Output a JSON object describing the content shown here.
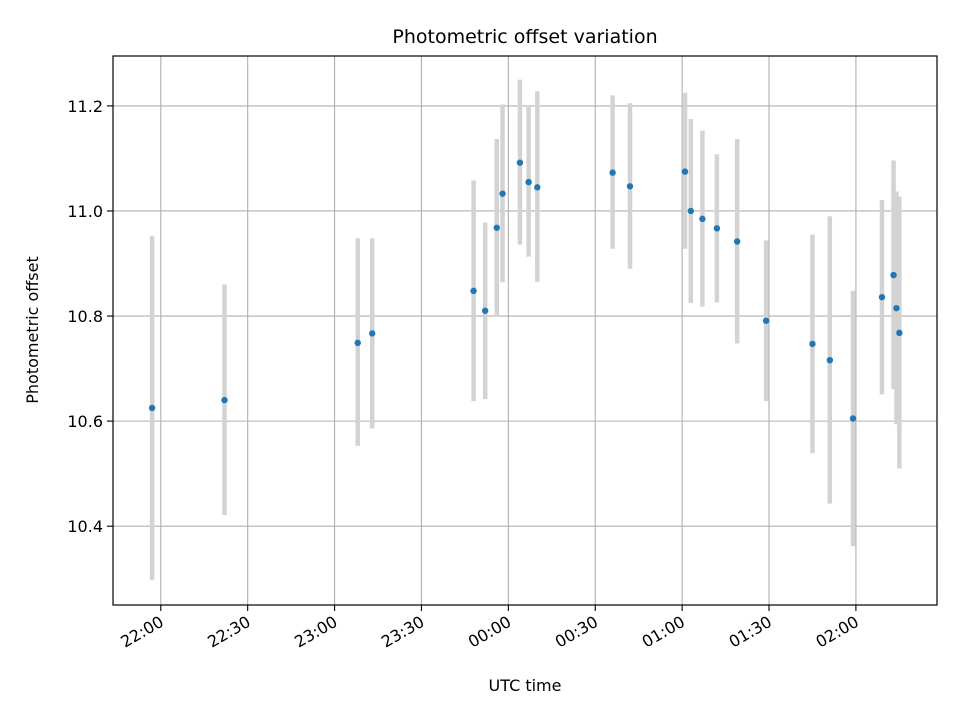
{
  "chart_data": {
    "type": "scatter",
    "title": "Photometric offset variation",
    "xlabel": "UTC time",
    "ylabel": "Photometric offset",
    "x_ticks": [
      "22:00",
      "22:30",
      "23:00",
      "23:30",
      "00:00",
      "00:30",
      "01:00",
      "01:30",
      "02:00"
    ],
    "x_tick_minutes": [
      0,
      30,
      60,
      90,
      120,
      150,
      180,
      210,
      240
    ],
    "xlim_minutes": [
      -16.5,
      268
    ],
    "ylim": [
      10.25,
      11.295
    ],
    "y_ticks": [
      10.4,
      10.6,
      10.8,
      11.0,
      11.2
    ],
    "grid": true,
    "marker_color": "#1f77b4",
    "errorbar_color": "#d3d3d3",
    "points": [
      {
        "time": "21:57",
        "y": 10.625,
        "lo": 10.298,
        "hi": 10.952
      },
      {
        "time": "22:22",
        "y": 10.64,
        "lo": 10.421,
        "hi": 10.86
      },
      {
        "time": "23:08",
        "y": 10.749,
        "lo": 10.553,
        "hi": 10.948
      },
      {
        "time": "23:13",
        "y": 10.767,
        "lo": 10.586,
        "hi": 10.948
      },
      {
        "time": "23:48",
        "y": 10.848,
        "lo": 10.638,
        "hi": 11.058
      },
      {
        "time": "23:52",
        "y": 10.81,
        "lo": 10.642,
        "hi": 10.978
      },
      {
        "time": "23:56",
        "y": 10.968,
        "lo": 10.799,
        "hi": 11.137
      },
      {
        "time": "23:58",
        "y": 11.033,
        "lo": 10.864,
        "hi": 11.203
      },
      {
        "time": "00:04",
        "y": 11.092,
        "lo": 10.936,
        "hi": 11.25
      },
      {
        "time": "00:07",
        "y": 11.055,
        "lo": 10.913,
        "hi": 11.198
      },
      {
        "time": "00:10",
        "y": 11.045,
        "lo": 10.865,
        "hi": 11.228
      },
      {
        "time": "00:36",
        "y": 11.073,
        "lo": 10.928,
        "hi": 11.22
      },
      {
        "time": "00:42",
        "y": 11.047,
        "lo": 10.89,
        "hi": 11.205
      },
      {
        "time": "01:01",
        "y": 11.075,
        "lo": 10.928,
        "hi": 11.225
      },
      {
        "time": "01:03",
        "y": 11.0,
        "lo": 10.825,
        "hi": 11.175
      },
      {
        "time": "01:07",
        "y": 10.985,
        "lo": 10.818,
        "hi": 11.153
      },
      {
        "time": "01:12",
        "y": 10.967,
        "lo": 10.826,
        "hi": 11.108
      },
      {
        "time": "01:19",
        "y": 10.942,
        "lo": 10.748,
        "hi": 11.137
      },
      {
        "time": "01:29",
        "y": 10.791,
        "lo": 10.638,
        "hi": 10.944
      },
      {
        "time": "01:45",
        "y": 10.747,
        "lo": 10.539,
        "hi": 10.955
      },
      {
        "time": "01:51",
        "y": 10.716,
        "lo": 10.443,
        "hi": 10.99
      },
      {
        "time": "01:59",
        "y": 10.605,
        "lo": 10.362,
        "hi": 10.848
      },
      {
        "time": "02:09",
        "y": 10.836,
        "lo": 10.651,
        "hi": 11.021
      },
      {
        "time": "02:13",
        "y": 10.878,
        "lo": 10.661,
        "hi": 11.096
      },
      {
        "time": "02:14",
        "y": 10.815,
        "lo": 10.594,
        "hi": 11.037
      },
      {
        "time": "02:15",
        "y": 10.768,
        "lo": 10.51,
        "hi": 11.027
      }
    ]
  }
}
